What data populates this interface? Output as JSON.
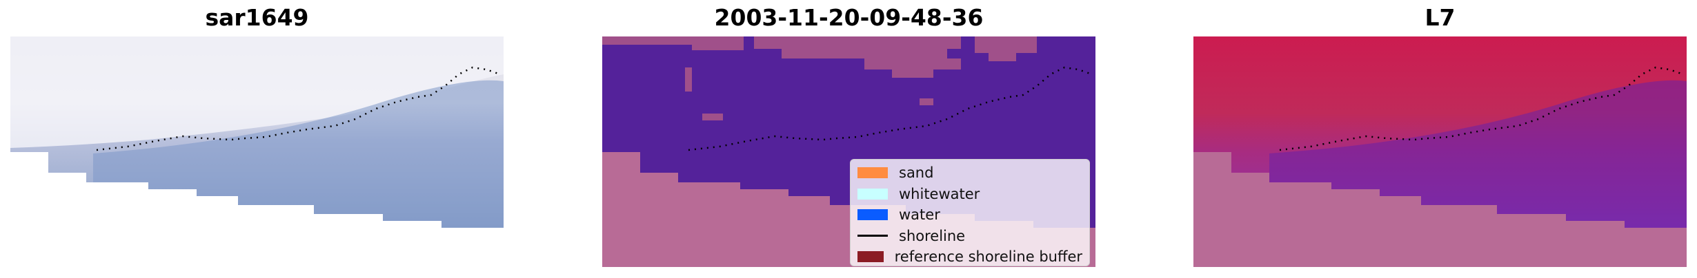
{
  "panels": [
    {
      "title": "sar1649"
    },
    {
      "title": "2003-11-20-09-48-36"
    },
    {
      "title": "L7"
    }
  ],
  "legend": {
    "items": [
      {
        "label": "sand",
        "color": "#ff8c40",
        "kind": "patch"
      },
      {
        "label": "whitewater",
        "color": "#c8ffff",
        "kind": "patch"
      },
      {
        "label": "water",
        "color": "#0a5cff",
        "kind": "patch"
      },
      {
        "label": "shoreline",
        "color": "#000000",
        "kind": "line"
      },
      {
        "label": "reference shoreline buffer",
        "color": "#8b1c24",
        "kind": "patch"
      }
    ]
  },
  "colors": {
    "nodata_pink": "#b86b96",
    "classified_purple": "#54229a",
    "water_blue": "#7e9ac8",
    "cloud_white": "#e8e8f2",
    "l7_red": "#c41c4c",
    "l7_purple": "#7a2aa8"
  }
}
